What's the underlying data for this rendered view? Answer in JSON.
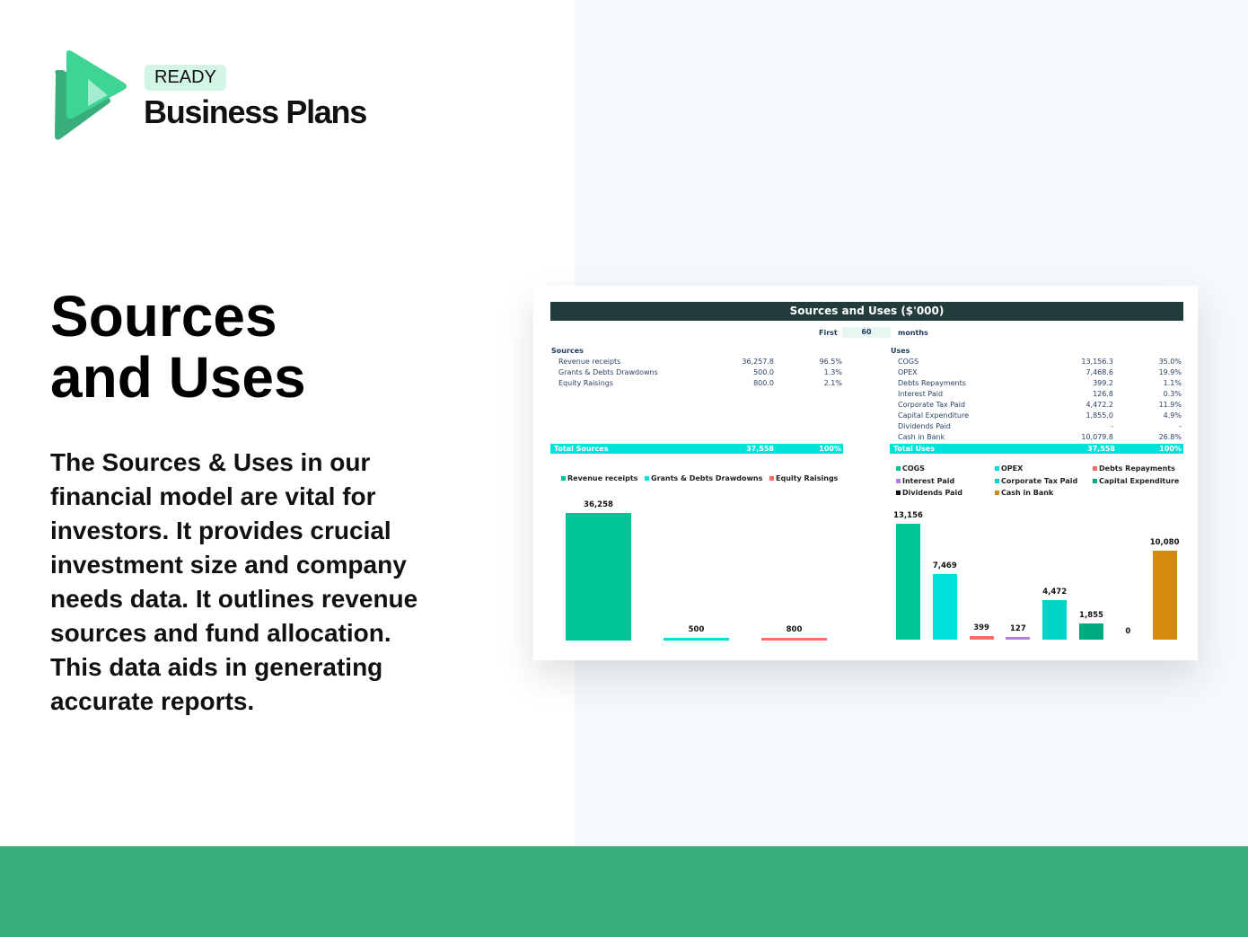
{
  "brand": {
    "badge": "READY",
    "name": "Business Plans",
    "colors": {
      "primary": "#3ed494",
      "dark": "#37ae7c",
      "light": "#a4ecd0"
    }
  },
  "hero": {
    "title_line1": "Sources",
    "title_line2": "and Uses",
    "description": "The Sources & Uses in our financial model are vital for investors. It provides crucial investment size and company needs data. It outlines revenue sources and fund allocation. This data aids in generating accurate reports."
  },
  "sheet": {
    "title": "Sources and Uses ($'000)",
    "period": {
      "prefix": "First",
      "value": "60",
      "suffix": "months"
    },
    "sources": {
      "heading": "Sources",
      "rows": [
        {
          "label": "Revenue receipts",
          "value": "36,257.8",
          "pct": "96.5%"
        },
        {
          "label": "Grants & Debts Drawdowns",
          "value": "500.0",
          "pct": "1.3%"
        },
        {
          "label": "Equity Raisings",
          "value": "800.0",
          "pct": "2.1%"
        }
      ],
      "total": {
        "label": "Total Sources",
        "value": "37,558",
        "pct": "100%"
      }
    },
    "uses": {
      "heading": "Uses",
      "rows": [
        {
          "label": "COGS",
          "value": "13,156.3",
          "pct": "35.0%"
        },
        {
          "label": "OPEX",
          "value": "7,468.6",
          "pct": "19.9%"
        },
        {
          "label": "Debts Repayments",
          "value": "399.2",
          "pct": "1.1%"
        },
        {
          "label": "Interest Paid",
          "value": "126.8",
          "pct": "0.3%"
        },
        {
          "label": "Corporate Tax Paid",
          "value": "4,472.2",
          "pct": "11.9%"
        },
        {
          "label": "Capital Expenditure",
          "value": "1,855.0",
          "pct": "4.9%"
        },
        {
          "label": "Dividends Paid",
          "value": "-",
          "pct": "-"
        },
        {
          "label": "Cash in Bank",
          "value": "10,079.8",
          "pct": "26.8%"
        }
      ],
      "total": {
        "label": "Total Uses",
        "value": "37,558",
        "pct": "100%"
      }
    }
  },
  "chart_data": [
    {
      "type": "bar",
      "categories": [
        "Revenue receipts",
        "Grants & Debts Drawdowns",
        "Equity Raisings"
      ],
      "values": [
        36258,
        500,
        800
      ],
      "labels": [
        "36,258",
        "500",
        "800"
      ],
      "colors": [
        "#00c496",
        "#00e0dc",
        "#ff6b6b"
      ],
      "legend": "top",
      "grid": false
    },
    {
      "type": "bar",
      "categories": [
        "COGS",
        "OPEX",
        "Debts Repayments",
        "Interest Paid",
        "Corporate Tax Paid",
        "Capital Expenditure",
        "Dividends Paid",
        "Cash in Bank"
      ],
      "values": [
        13156,
        7469,
        399,
        127,
        4472,
        1855,
        0,
        10080
      ],
      "labels": [
        "13,156",
        "7,469",
        "399",
        "127",
        "4,472",
        "1,855",
        "0",
        "10,080"
      ],
      "colors": [
        "#00c496",
        "#00e0dc",
        "#ff6b6b",
        "#b57ed8",
        "#00d4c4",
        "#00aa80",
        "#111111",
        "#d4890f"
      ],
      "legend": "top",
      "grid": false
    }
  ]
}
